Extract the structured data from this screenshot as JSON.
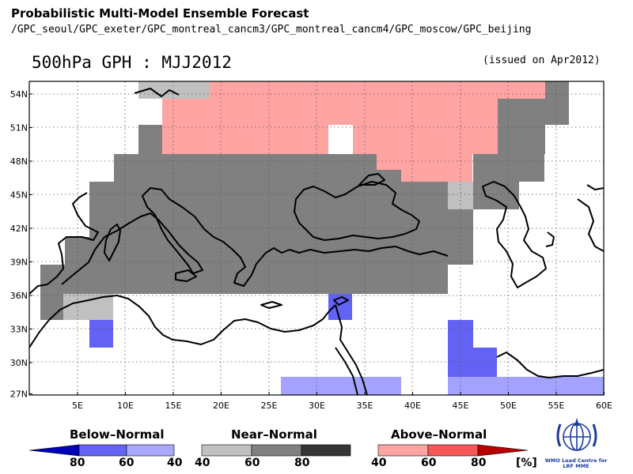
{
  "header": {
    "title": "Probabilistic Multi-Model Ensemble Forecast",
    "models": "/GPC_seoul/GPC_exeter/GPC_montreal_cancm3/GPC_montreal_cancm4/GPC_moscow/GPC_beijing",
    "variable_title": "500hPa GPH : MJJ2012",
    "issued": "(issued on Apr2012)"
  },
  "map": {
    "lat_labels": [
      "54N",
      "51N",
      "48N",
      "45N",
      "42N",
      "39N",
      "36N",
      "33N",
      "30N",
      "27N"
    ],
    "lon_labels": [
      "5E",
      "10E",
      "15E",
      "20E",
      "25E",
      "30E",
      "35E",
      "40E",
      "45E",
      "50E",
      "55E",
      "60E"
    ],
    "colors": {
      "near_dark": "#808080",
      "near_light": "#c0c0c0",
      "above_light": "#ffa3a3",
      "below_mid": "#6262f5",
      "below_light": "#a3a3ff"
    }
  },
  "legend": {
    "below": {
      "title": "Below–Normal",
      "ticks": [
        "80",
        "60",
        "40"
      ],
      "colors": [
        "#0000b8",
        "#6464f4",
        "#a8a8ff"
      ]
    },
    "near": {
      "title": "Near–Normal",
      "ticks": [
        "40",
        "60",
        "80"
      ],
      "colors": [
        "#c0c0c0",
        "#808080",
        "#353535"
      ]
    },
    "above": {
      "title": "Above–Normal",
      "ticks": [
        "40",
        "60",
        "80"
      ],
      "unit": "[%]",
      "colors": [
        "#ffa3a3",
        "#f55757",
        "#b80000"
      ]
    }
  },
  "logo": {
    "icon": "wmo-emblem-icon",
    "caption_line1": "WMO Lead Centre for",
    "caption_line2": "LRF MME"
  }
}
